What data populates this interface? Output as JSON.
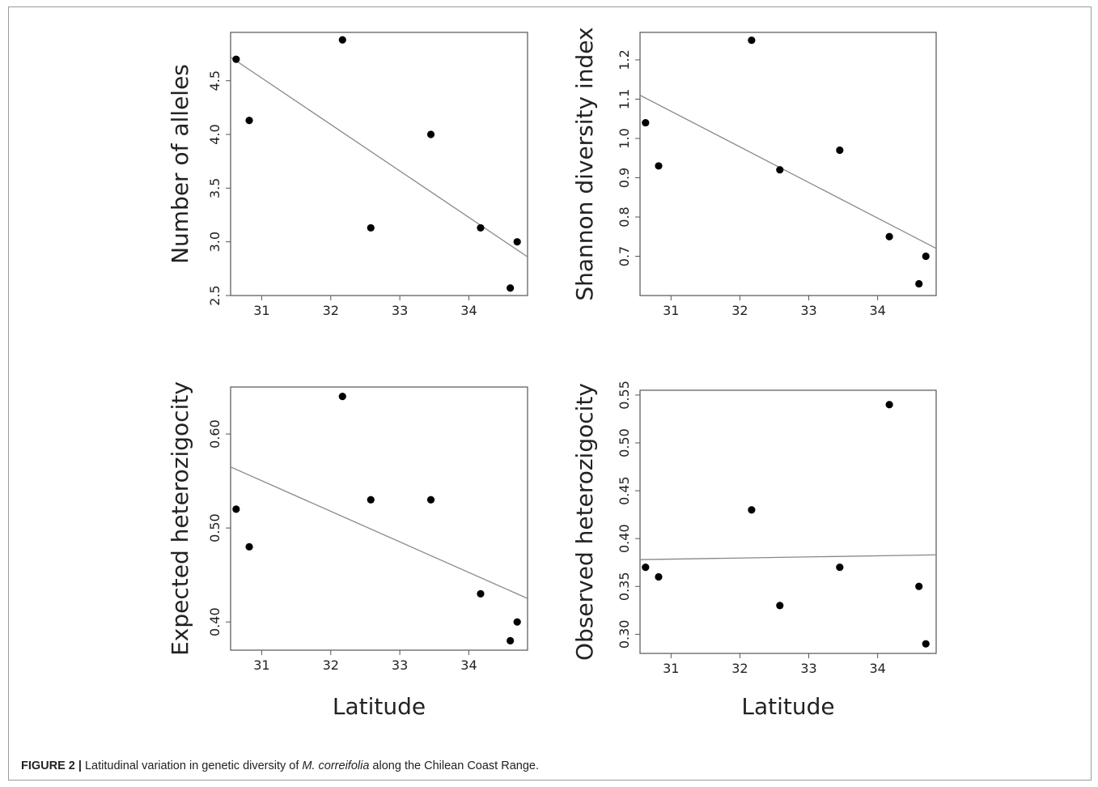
{
  "caption": {
    "figure_label": "FIGURE 2 |",
    "text_before": " Latitudinal variation in genetic diversity of ",
    "species": "M. correifolia",
    "text_after": " along the Chilean Coast Range."
  },
  "colors": {
    "points": "#000000",
    "trend_line": "#888888",
    "frame": "#555555"
  },
  "chart_data": [
    {
      "type": "scatter",
      "xlabel": "",
      "ylabel": "Number of alleles",
      "xlim": [
        30.55,
        34.85
      ],
      "ylim": [
        2.5,
        4.95
      ],
      "xticks": [
        "31",
        "32",
        "33",
        "34"
      ],
      "yticks": [
        "2.5",
        "3.0",
        "3.5",
        "4.0",
        "4.5"
      ],
      "points": [
        {
          "x": 30.63,
          "y": 4.7
        },
        {
          "x": 30.82,
          "y": 4.13
        },
        {
          "x": 32.17,
          "y": 4.88
        },
        {
          "x": 32.58,
          "y": 3.13
        },
        {
          "x": 33.45,
          "y": 4.0
        },
        {
          "x": 34.17,
          "y": 3.13
        },
        {
          "x": 34.6,
          "y": 2.57
        },
        {
          "x": 34.7,
          "y": 3.0
        }
      ],
      "trend": [
        [
          30.55,
          4.72
        ],
        [
          34.85,
          2.86
        ]
      ]
    },
    {
      "type": "scatter",
      "xlabel": "",
      "ylabel": "Shannon diversity index",
      "xlim": [
        30.55,
        34.85
      ],
      "ylim": [
        0.6,
        1.27
      ],
      "xticks": [
        "31",
        "32",
        "33",
        "34"
      ],
      "yticks": [
        "0.7",
        "0.8",
        "0.9",
        "1.0",
        "1.1",
        "1.2"
      ],
      "points": [
        {
          "x": 30.63,
          "y": 1.04
        },
        {
          "x": 30.82,
          "y": 0.93
        },
        {
          "x": 32.17,
          "y": 1.25
        },
        {
          "x": 32.58,
          "y": 0.92
        },
        {
          "x": 33.45,
          "y": 0.97
        },
        {
          "x": 34.17,
          "y": 0.75
        },
        {
          "x": 34.6,
          "y": 0.63
        },
        {
          "x": 34.7,
          "y": 0.7
        }
      ],
      "trend": [
        [
          30.55,
          1.11
        ],
        [
          34.85,
          0.72
        ]
      ]
    },
    {
      "type": "scatter",
      "xlabel": "Latitude",
      "ylabel": "Expected heterozigocity",
      "xlim": [
        30.55,
        34.85
      ],
      "ylim": [
        0.37,
        0.65
      ],
      "xticks": [
        "31",
        "32",
        "33",
        "34"
      ],
      "yticks": [
        "0.40",
        "0.50",
        "0.60"
      ],
      "points": [
        {
          "x": 30.63,
          "y": 0.52
        },
        {
          "x": 30.82,
          "y": 0.48
        },
        {
          "x": 32.17,
          "y": 0.64
        },
        {
          "x": 32.58,
          "y": 0.53
        },
        {
          "x": 33.45,
          "y": 0.53
        },
        {
          "x": 34.17,
          "y": 0.43
        },
        {
          "x": 34.6,
          "y": 0.38
        },
        {
          "x": 34.7,
          "y": 0.4
        }
      ],
      "trend": [
        [
          30.55,
          0.565
        ],
        [
          34.85,
          0.425
        ]
      ]
    },
    {
      "type": "scatter",
      "xlabel": "Latitude",
      "ylabel": "Observed heterozigocity",
      "xlim": [
        30.55,
        34.85
      ],
      "ylim": [
        0.28,
        0.555
      ],
      "xticks": [
        "31",
        "32",
        "33",
        "34"
      ],
      "yticks": [
        "0.30",
        "0.35",
        "0.40",
        "0.45",
        "0.50",
        "0.55"
      ],
      "points": [
        {
          "x": 30.63,
          "y": 0.37
        },
        {
          "x": 30.82,
          "y": 0.36
        },
        {
          "x": 32.17,
          "y": 0.43
        },
        {
          "x": 32.58,
          "y": 0.33
        },
        {
          "x": 33.45,
          "y": 0.37
        },
        {
          "x": 34.17,
          "y": 0.54
        },
        {
          "x": 34.6,
          "y": 0.35
        },
        {
          "x": 34.7,
          "y": 0.29
        }
      ],
      "trend": [
        [
          30.55,
          0.378
        ],
        [
          34.85,
          0.383
        ]
      ]
    }
  ]
}
